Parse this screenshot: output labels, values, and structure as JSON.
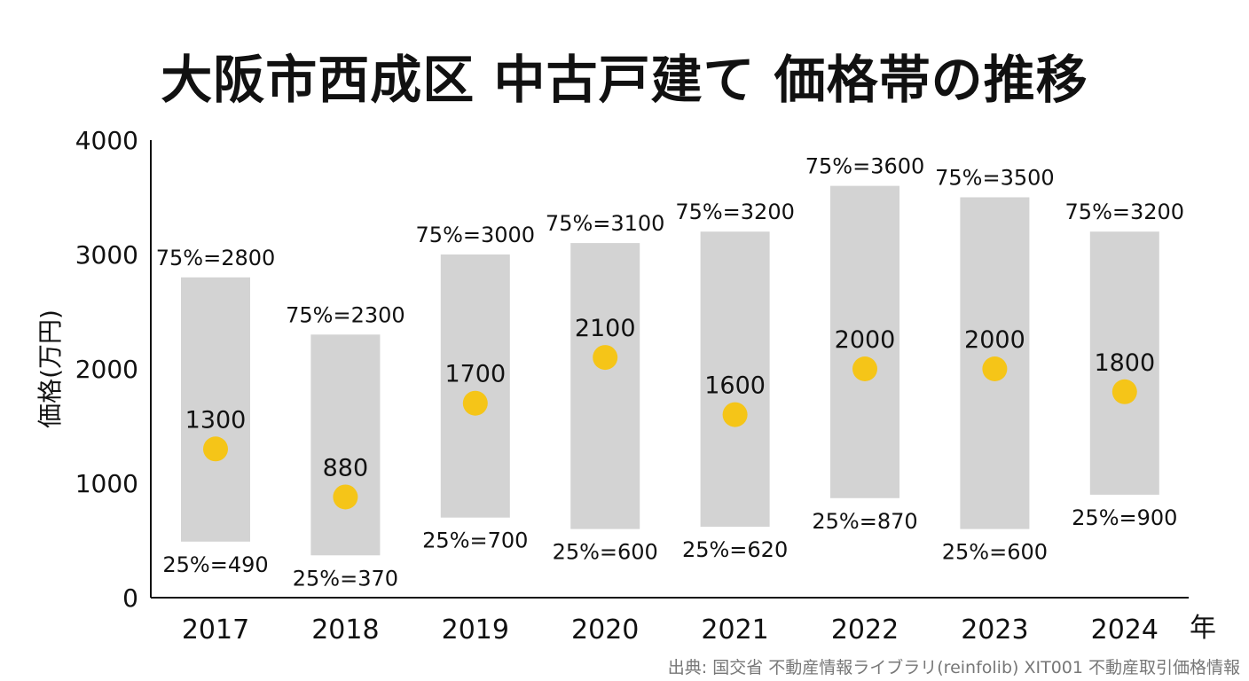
{
  "title": "大阪市西成区 中古戸建て 価格帯の推移",
  "source": "出典: 国交省 不動産情報ライブラリ(reinfolib) XIT001 不動産取引価格情報",
  "colors": {
    "band": "#d3d3d3",
    "median": "#f5c518",
    "axis": "#111111",
    "text": "#111111",
    "source": "#777777"
  },
  "chart_data": {
    "type": "bar",
    "xlabel": "年",
    "ylabel": "価格(万円)",
    "ylim": [
      0,
      4000
    ],
    "yticks": [
      0,
      1000,
      2000,
      3000,
      4000
    ],
    "grid": false,
    "categories": [
      "2017",
      "2018",
      "2019",
      "2020",
      "2021",
      "2022",
      "2023",
      "2024"
    ],
    "series": [
      {
        "name": "25%",
        "values": [
          490,
          370,
          700,
          600,
          620,
          870,
          600,
          900
        ]
      },
      {
        "name": "75%",
        "values": [
          2800,
          2300,
          3000,
          3100,
          3200,
          3600,
          3500,
          3200
        ]
      },
      {
        "name": "",
        "values": [
          1300,
          880,
          1700,
          2100,
          1600,
          2000,
          2000,
          1800
        ]
      }
    ],
    "labels": {
      "q1": [
        "25%=490",
        "25%=370",
        "25%=700",
        "25%=600",
        "25%=620",
        "25%=870",
        "25%=600",
        "25%=900"
      ],
      "q3": [
        "75%=2800",
        "75%=2300",
        "75%=3000",
        "75%=3100",
        "75%=3200",
        "75%=3600",
        "75%=3500",
        "75%=3200"
      ],
      "median": [
        "1300",
        "880",
        "1700",
        "2100",
        "1600",
        "2000",
        "2000",
        "1800"
      ]
    }
  }
}
